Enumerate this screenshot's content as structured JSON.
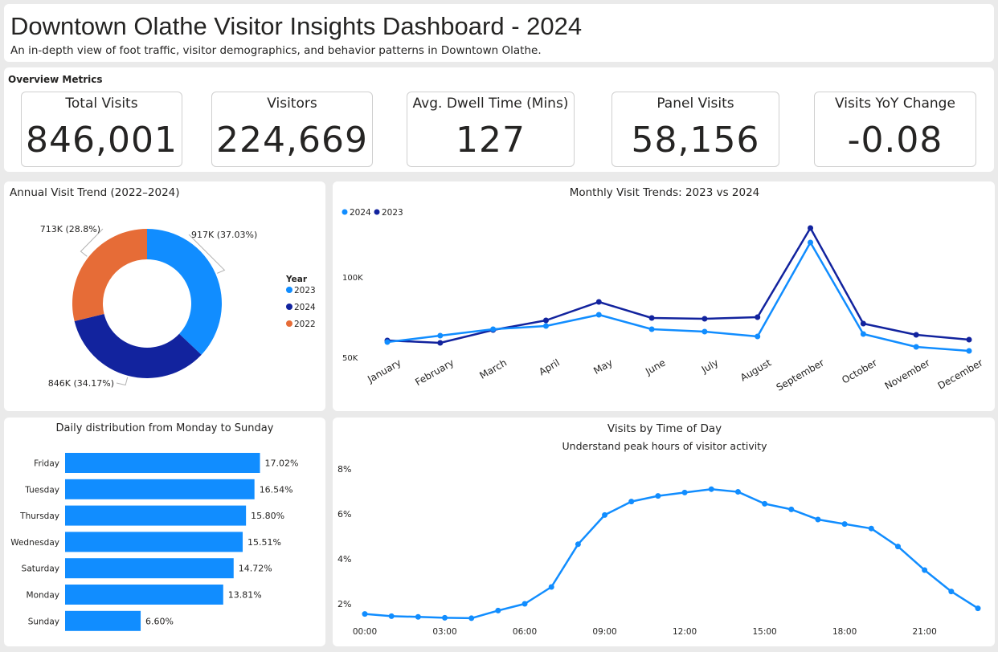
{
  "header": {
    "title": "Downtown Olathe Visitor Insights Dashboard - 2024",
    "subtitle": "An in-depth view of foot traffic, visitor demographics, and behavior patterns in Downtown Olathe."
  },
  "overview": {
    "title": "Overview Metrics",
    "cards": [
      {
        "label": "Total Visits",
        "value": "846,001"
      },
      {
        "label": "Visitors",
        "value": "224,669"
      },
      {
        "label": "Avg. Dwell Time (Mins)",
        "value": "127"
      },
      {
        "label": "Panel Visits",
        "value": "58,156"
      },
      {
        "label": "Visits YoY Change",
        "value": "-0.08"
      }
    ]
  },
  "colors": {
    "light_blue": "#118dff",
    "navy": "#12239e",
    "orange": "#e66c37"
  },
  "chart_data": [
    {
      "type": "pie",
      "title": "Annual Visit Trend (2022–2024)",
      "legend_title": "Year",
      "legend_position": "right",
      "slices": [
        {
          "name": "2023",
          "value": 917,
          "label": "917K (37.03%)",
          "color": "#118dff"
        },
        {
          "name": "2024",
          "value": 846,
          "label": "846K (34.17%)",
          "color": "#12239e"
        },
        {
          "name": "2022",
          "value": 713,
          "label": "713K (28.8%)",
          "color": "#e66c37"
        }
      ]
    },
    {
      "type": "line",
      "title": "Monthly Visit Trends: 2023 vs 2024",
      "legend_position": "top-left",
      "categories": [
        "January",
        "February",
        "March",
        "April",
        "May",
        "June",
        "July",
        "August",
        "September",
        "October",
        "November",
        "December"
      ],
      "series": [
        {
          "name": "2024",
          "color": "#118dff",
          "values": [
            60000,
            64000,
            68000,
            70000,
            77000,
            68000,
            66500,
            63500,
            122000,
            65000,
            57000,
            54500
          ]
        },
        {
          "name": "2023",
          "color": "#12239e",
          "values": [
            61000,
            59500,
            67500,
            73500,
            85000,
            75000,
            74500,
            75500,
            131000,
            71500,
            64500,
            61500
          ]
        }
      ],
      "y_ticks": [
        {
          "value": 50000,
          "label": "50K"
        },
        {
          "value": 100000,
          "label": "100K"
        }
      ],
      "ylim": [
        40000,
        140000
      ]
    },
    {
      "type": "bar",
      "orientation": "horizontal",
      "title": "Daily distribution from Monday to Sunday",
      "color": "#118dff",
      "categories": [
        "Friday",
        "Tuesday",
        "Thursday",
        "Wednesday",
        "Saturday",
        "Monday",
        "Sunday"
      ],
      "values": [
        17.02,
        16.54,
        15.8,
        15.51,
        14.72,
        13.81,
        6.6
      ],
      "labels": [
        "17.02%",
        "16.54%",
        "15.80%",
        "15.51%",
        "14.72%",
        "13.81%",
        "6.60%"
      ],
      "xlim": [
        0,
        20
      ]
    },
    {
      "type": "line",
      "title": "Visits by Time of Day",
      "subtitle": "Understand peak hours of visitor activity",
      "color": "#118dff",
      "x": [
        0,
        1,
        2,
        3,
        4,
        5,
        6,
        7,
        8,
        9,
        10,
        11,
        12,
        13,
        14,
        15,
        16,
        17,
        18,
        19,
        20,
        21,
        22,
        23
      ],
      "values": [
        1.55,
        1.45,
        1.42,
        1.38,
        1.36,
        1.7,
        2.0,
        2.75,
        4.65,
        5.95,
        6.55,
        6.8,
        6.95,
        7.1,
        6.98,
        6.45,
        6.2,
        5.75,
        5.55,
        5.35,
        4.55,
        3.5,
        2.55,
        1.8
      ],
      "x_ticks": [
        {
          "value": 0,
          "label": "00:00"
        },
        {
          "value": 3,
          "label": "03:00"
        },
        {
          "value": 6,
          "label": "06:00"
        },
        {
          "value": 9,
          "label": "09:00"
        },
        {
          "value": 12,
          "label": "12:00"
        },
        {
          "value": 15,
          "label": "15:00"
        },
        {
          "value": 18,
          "label": "18:00"
        },
        {
          "value": 21,
          "label": "21:00"
        }
      ],
      "y_ticks": [
        {
          "value": 2,
          "label": "2%"
        },
        {
          "value": 4,
          "label": "4%"
        },
        {
          "value": 6,
          "label": "6%"
        },
        {
          "value": 8,
          "label": "8%"
        }
      ],
      "ylim": [
        1,
        8.5
      ]
    }
  ]
}
